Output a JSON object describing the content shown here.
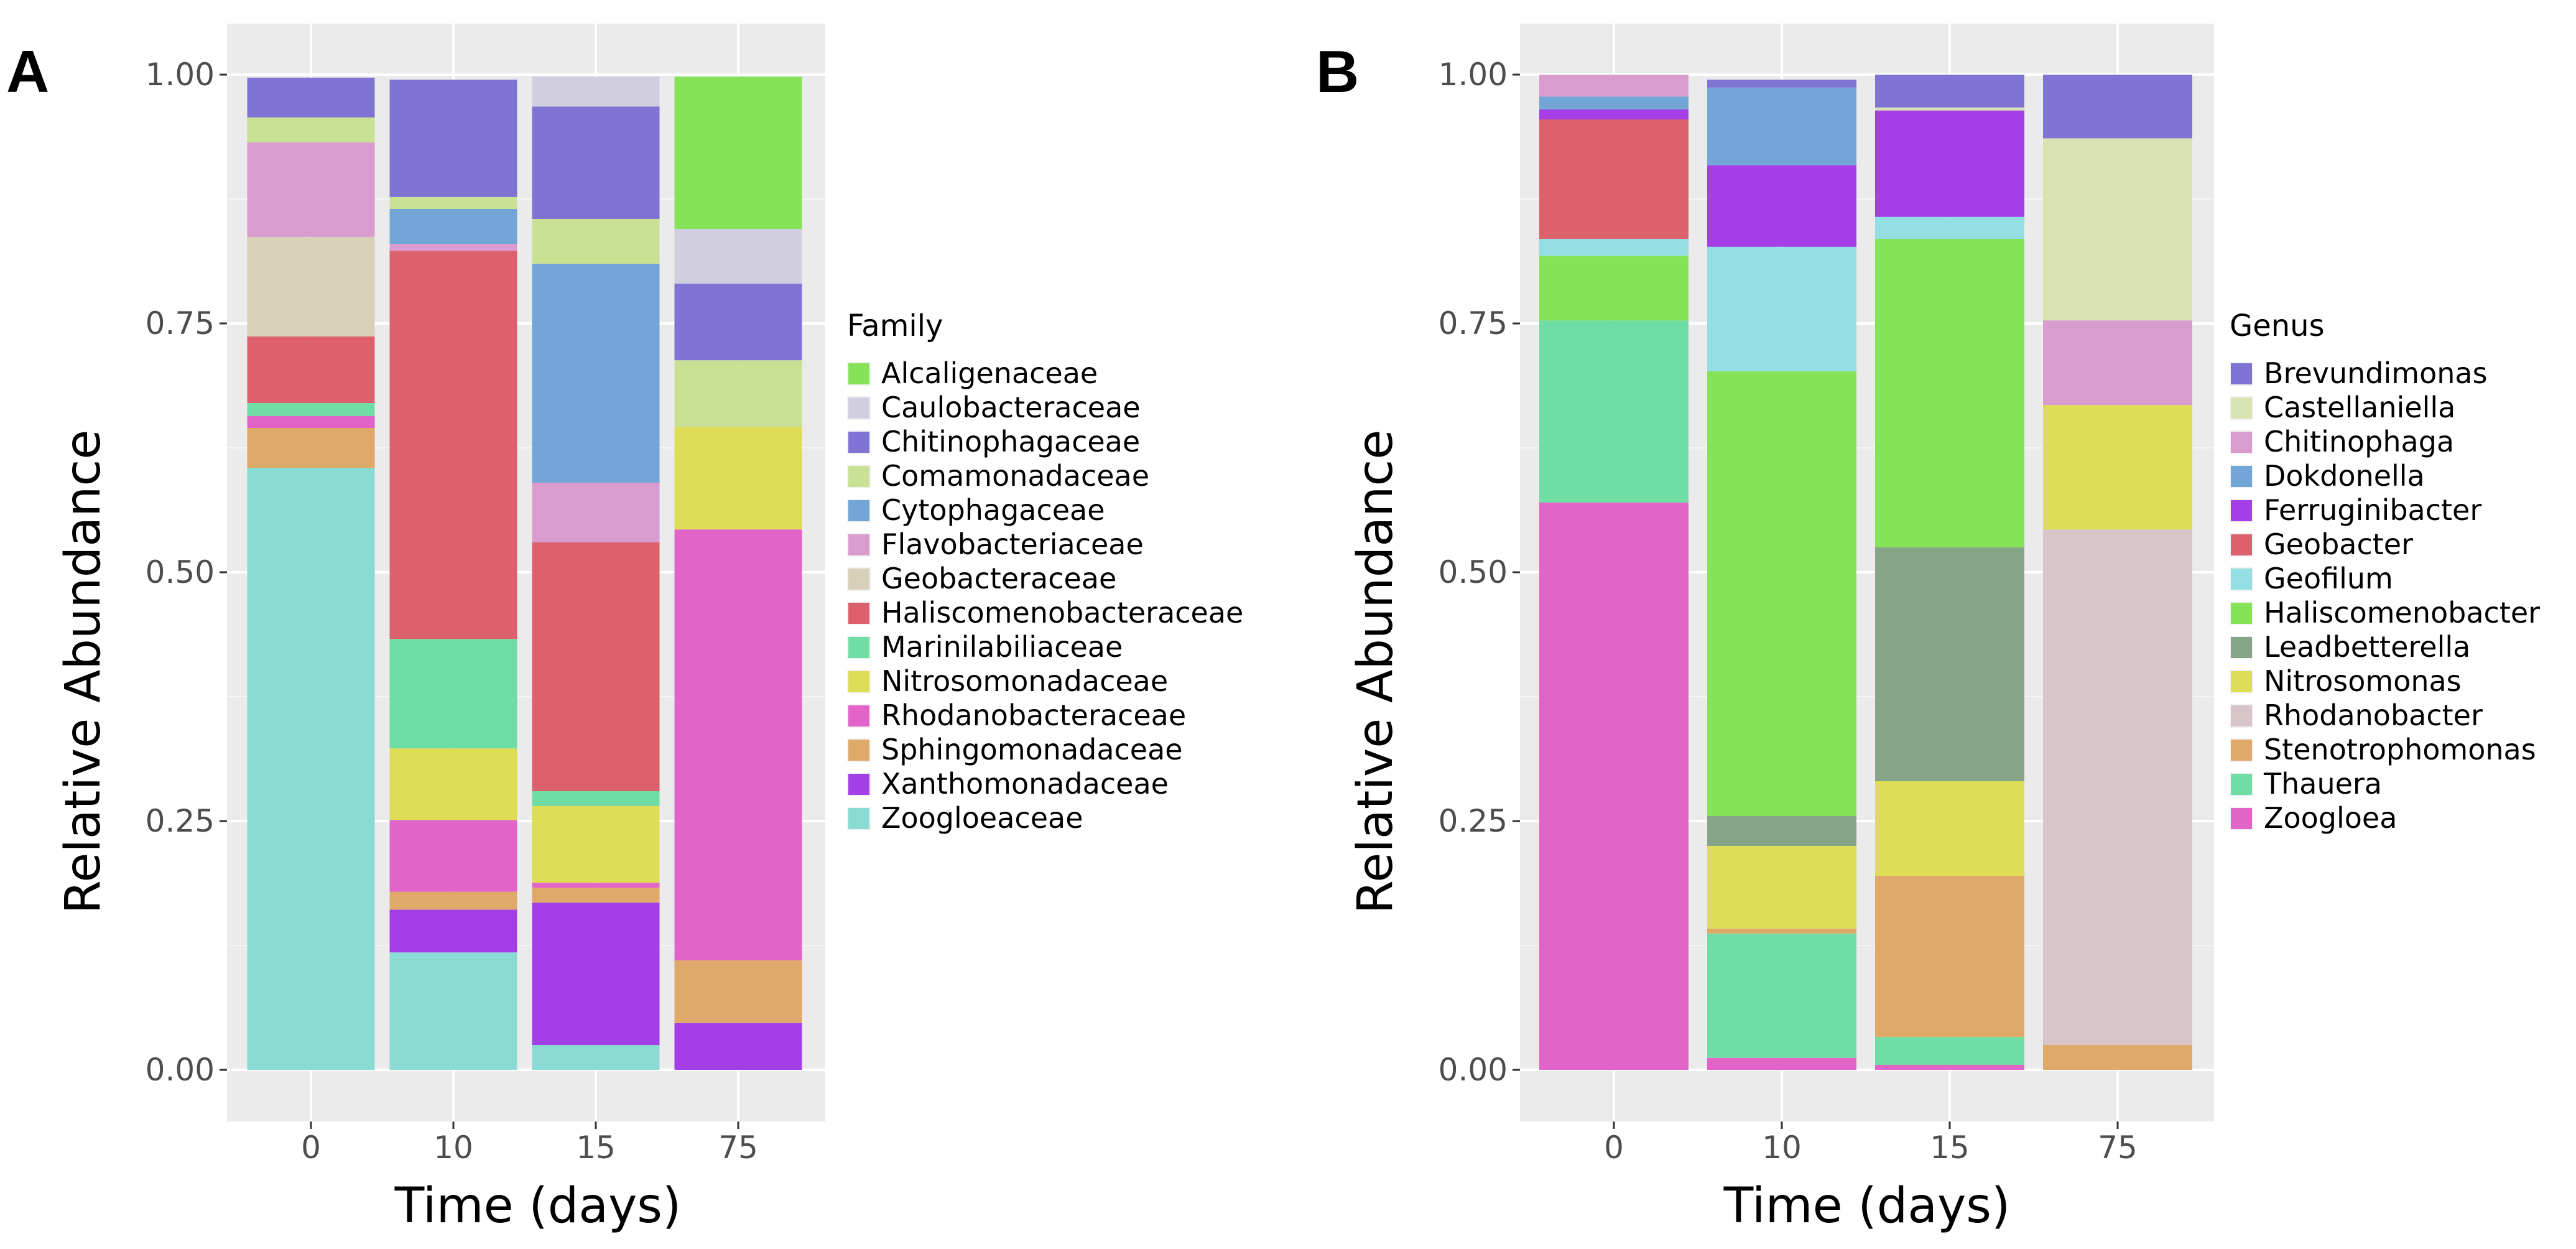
{
  "chart_data": [
    {
      "type": "bar",
      "stacked": true,
      "panel_label": "A",
      "xlabel": "Time (days)",
      "ylabel": "Relative Abundance",
      "ylim": [
        0,
        1
      ],
      "yticks": [
        "0.00",
        "0.25",
        "0.50",
        "0.75",
        "1.00"
      ],
      "categories": [
        "0",
        "10",
        "15",
        "75"
      ],
      "legend_title": "Family",
      "series": [
        {
          "name": "Zoogloeaceae",
          "color": "#8adbd3",
          "values": [
            0.605,
            0.118,
            0.025,
            0.0
          ]
        },
        {
          "name": "Xanthomonadaceae",
          "color": "#a43fe8",
          "values": [
            0.0,
            0.043,
            0.143,
            0.047
          ]
        },
        {
          "name": "Sphingomonadaceae",
          "color": "#dfa96a",
          "values": [
            0.04,
            0.018,
            0.015,
            0.063
          ]
        },
        {
          "name": "Rhodanobacteraceae",
          "color": "#e364c9",
          "values": [
            0.012,
            0.072,
            0.005,
            0.433
          ]
        },
        {
          "name": "Nitrosomonadaceae",
          "color": "#dedd55",
          "values": [
            0.0,
            0.072,
            0.077,
            0.103
          ]
        },
        {
          "name": "Marinilabiliaceae",
          "color": "#70dea4",
          "values": [
            0.013,
            0.11,
            0.015,
            0.0
          ]
        },
        {
          "name": "Haliscomenobacteraceae",
          "color": "#dc616d",
          "values": [
            0.067,
            0.39,
            0.25,
            0.0
          ]
        },
        {
          "name": "Geobacteraceae",
          "color": "#d8d0b8",
          "values": [
            0.1,
            0.0,
            0.0,
            0.0
          ]
        },
        {
          "name": "Flavobacteriaceae",
          "color": "#da9bcf",
          "values": [
            0.095,
            0.007,
            0.06,
            0.0
          ]
        },
        {
          "name": "Cytophagaceae",
          "color": "#73a6d7",
          "values": [
            0.0,
            0.035,
            0.22,
            0.0
          ]
        },
        {
          "name": "Comamonadaceae",
          "color": "#c9e195",
          "values": [
            0.025,
            0.012,
            0.045,
            0.067
          ]
        },
        {
          "name": "Chitinophagaceae",
          "color": "#7f73d4",
          "values": [
            0.04,
            0.118,
            0.113,
            0.077
          ]
        },
        {
          "name": "Caulobacteraceae",
          "color": "#d1cfdf",
          "values": [
            0.0,
            0.0,
            0.03,
            0.055
          ]
        },
        {
          "name": "Alcaligenaceae",
          "color": "#86e357",
          "values": [
            0.0,
            0.0,
            0.0,
            0.153
          ]
        }
      ],
      "legend_order": [
        "Alcaligenaceae",
        "Caulobacteraceae",
        "Chitinophagaceae",
        "Comamonadaceae",
        "Cytophagaceae",
        "Flavobacteriaceae",
        "Geobacteraceae",
        "Haliscomenobacteraceae",
        "Marinilabiliaceae",
        "Nitrosomonadaceae",
        "Rhodanobacteraceae",
        "Sphingomonadaceae",
        "Xanthomonadaceae",
        "Zoogloeaceae"
      ]
    },
    {
      "type": "bar",
      "stacked": true,
      "panel_label": "B",
      "xlabel": "Time (days)",
      "ylabel": "Relative Abundance",
      "ylim": [
        0,
        1
      ],
      "yticks": [
        "0.00",
        "0.25",
        "0.50",
        "0.75",
        "1.00"
      ],
      "categories": [
        "0",
        "10",
        "15",
        "75"
      ],
      "legend_title": "Genus",
      "series": [
        {
          "name": "Zoogloea",
          "color": "#e364c9",
          "values": [
            0.57,
            0.012,
            0.005,
            0.0
          ]
        },
        {
          "name": "Thauera",
          "color": "#70dea4",
          "values": [
            0.183,
            0.125,
            0.028,
            0.0
          ]
        },
        {
          "name": "Stenotrophomonas",
          "color": "#dfa96a",
          "values": [
            0.0,
            0.005,
            0.162,
            0.025
          ]
        },
        {
          "name": "Rhodanobacter",
          "color": "#d9c4ca",
          "values": [
            0.0,
            0.0,
            0.0,
            0.518
          ]
        },
        {
          "name": "Nitrosomonas",
          "color": "#dedd55",
          "values": [
            0.0,
            0.083,
            0.095,
            0.125
          ]
        },
        {
          "name": "Leadbetterella",
          "color": "#85a488",
          "values": [
            0.0,
            0.03,
            0.235,
            0.0
          ]
        },
        {
          "name": "Haliscomenobacter",
          "color": "#86e357",
          "values": [
            0.065,
            0.447,
            0.31,
            0.0
          ]
        },
        {
          "name": "Geofilum",
          "color": "#93dfe3",
          "values": [
            0.017,
            0.125,
            0.022,
            0.0
          ]
        },
        {
          "name": "Geobacter",
          "color": "#dc616d",
          "values": [
            0.12,
            0.0,
            0.0,
            0.0
          ]
        },
        {
          "name": "Ferruginibacter",
          "color": "#a43fe8",
          "values": [
            0.01,
            0.082,
            0.107,
            0.0
          ]
        },
        {
          "name": "Dokdonella",
          "color": "#73a6d7",
          "values": [
            0.013,
            0.078,
            0.0,
            0.0
          ]
        },
        {
          "name": "Chitinophaga",
          "color": "#da9bcf",
          "values": [
            0.022,
            0.0,
            0.0,
            0.085
          ]
        },
        {
          "name": "Castellaniella",
          "color": "#d8e3b1",
          "values": [
            0.0,
            0.0,
            0.003,
            0.183
          ]
        },
        {
          "name": "Brevundimonas",
          "color": "#7f73d4",
          "values": [
            0.0,
            0.008,
            0.033,
            0.064
          ]
        }
      ],
      "legend_order": [
        "Brevundimonas",
        "Castellaniella",
        "Chitinophaga",
        "Dokdonella",
        "Ferruginibacter",
        "Geobacter",
        "Geofilum",
        "Haliscomenobacter",
        "Leadbetterella",
        "Nitrosomonas",
        "Rhodanobacter",
        "Stenotrophomonas",
        "Thauera",
        "Zoogloea"
      ]
    }
  ]
}
